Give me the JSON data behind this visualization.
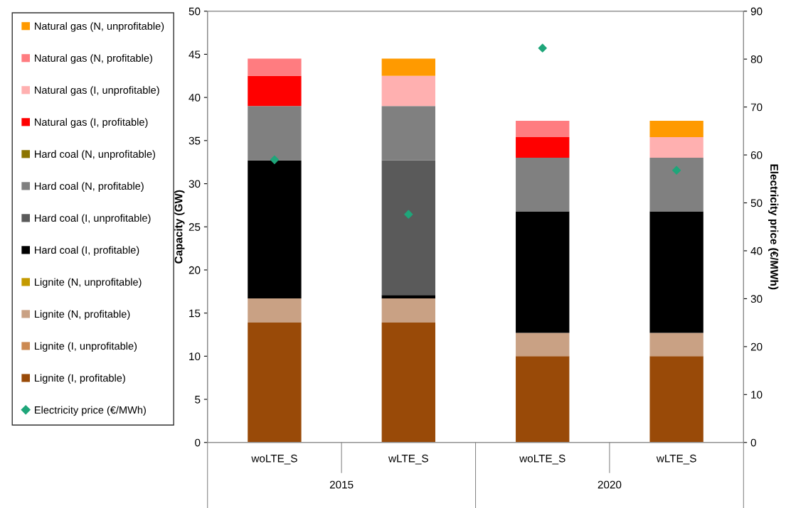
{
  "chart_data": {
    "type": "bar",
    "stacked": true,
    "categories": [
      "woLTE_S",
      "wLTE_S",
      "woLTE_S",
      "wLTE_S"
    ],
    "annotations": [
      "2015",
      "2020"
    ],
    "ylabel": "Capacity (GW)",
    "y2label": "Electricity price (€/MWh)",
    "ylim": [
      0,
      50
    ],
    "yticks": [
      0,
      5,
      10,
      15,
      20,
      25,
      30,
      35,
      40,
      45,
      50
    ],
    "y2lim": [
      0,
      90
    ],
    "y2ticks": [
      0,
      10,
      20,
      30,
      40,
      50,
      60,
      70,
      80,
      90
    ],
    "grid": false,
    "legend": "left",
    "series": [
      {
        "name": "Lignite (I, profitable)",
        "color": "#994a08",
        "values": [
          13.9,
          13.9,
          10.0,
          10.0
        ]
      },
      {
        "name": "Lignite (I, unprofitable)",
        "color": "#cc8a52",
        "values": [
          0,
          0,
          0,
          0
        ]
      },
      {
        "name": "Lignite (N, profitable)",
        "color": "#c9a184",
        "values": [
          2.8,
          2.8,
          2.7,
          2.7
        ]
      },
      {
        "name": "Lignite (N, unprofitable)",
        "color": "#c49a00",
        "values": [
          0,
          0,
          0,
          0
        ]
      },
      {
        "name": "Hard coal (I, profitable)",
        "color": "#000000",
        "values": [
          16.0,
          0.4,
          14.1,
          14.1
        ]
      },
      {
        "name": "Hard coal (I, unprofitable)",
        "color": "#5a5a5a",
        "values": [
          0,
          15.6,
          0,
          0
        ]
      },
      {
        "name": "Hard coal (N, profitable)",
        "color": "#808080",
        "values": [
          6.3,
          6.3,
          6.2,
          6.2
        ]
      },
      {
        "name": "Hard coal (N, unprofitable)",
        "color": "#8c7400",
        "values": [
          0,
          0,
          0,
          0
        ]
      },
      {
        "name": "Natural gas (I, profitable)",
        "color": "#ff0000",
        "values": [
          3.5,
          0,
          2.4,
          0
        ]
      },
      {
        "name": "Natural gas (I, unprofitable)",
        "color": "#ffb0b0",
        "values": [
          0,
          3.5,
          0,
          2.4
        ]
      },
      {
        "name": "Natural gas (N, profitable)",
        "color": "#ff7c80",
        "values": [
          2.0,
          0,
          1.9,
          0
        ]
      },
      {
        "name": "Natural gas (N, unprofitable)",
        "color": "#ff9a00",
        "values": [
          0,
          2.0,
          0,
          1.9
        ]
      },
      {
        "name": "Electricity price (€/MWh)",
        "type": "scatter",
        "axis": "y2",
        "marker": "diamond",
        "color": "#1fa67a",
        "values": [
          59,
          47.6,
          82.3,
          56.8
        ]
      }
    ]
  }
}
